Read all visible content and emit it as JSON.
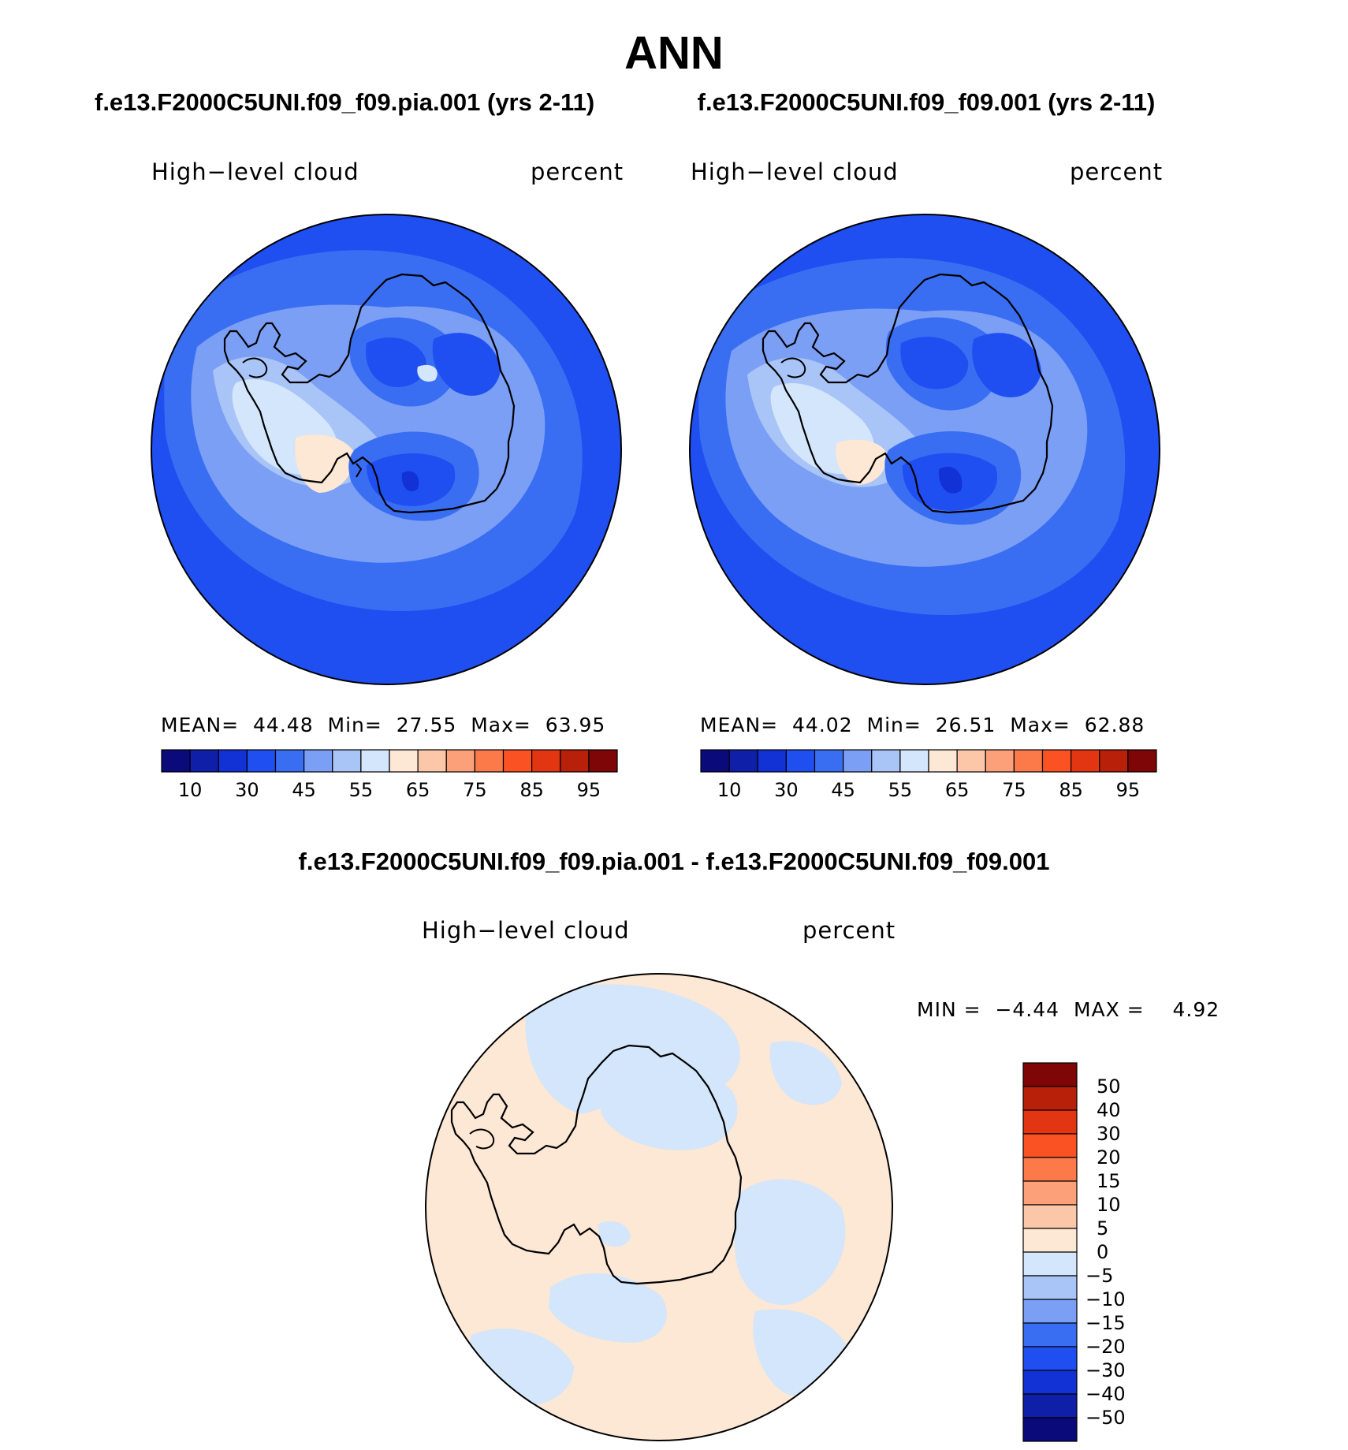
{
  "page_title": "ANN",
  "panels": [
    {
      "case_title": "f.e13.F2000C5UNI.f09_f09.pia.001 (yrs 2-11)",
      "variable": "High−level cloud",
      "units": "percent",
      "stats": {
        "mean_label": "MEAN=",
        "mean": "44.48",
        "min_label": "Min=",
        "min": "27.55",
        "max_label": "Max=",
        "max": "63.95"
      }
    },
    {
      "case_title": "f.e13.F2000C5UNI.f09_f09.001 (yrs 2-11)",
      "variable": "High−level cloud",
      "units": "percent",
      "stats": {
        "mean_label": "MEAN=",
        "mean": "44.02",
        "min_label": "Min=",
        "min": "26.51",
        "max_label": "Max=",
        "max": "62.88"
      }
    }
  ],
  "field_colorbar": {
    "colors": [
      "#0a0a7a",
      "#0f1fa8",
      "#1232d6",
      "#1f4ff0",
      "#3a6ef2",
      "#7a9ff5",
      "#a9c4f7",
      "#d3e6fb",
      "#fde7d5",
      "#fcc7a8",
      "#fca07a",
      "#fc7a4a",
      "#fb5224",
      "#e23512",
      "#b9200a",
      "#7e0606"
    ],
    "tick_labels": [
      "10",
      "30",
      "45",
      "55",
      "65",
      "75",
      "85",
      "95"
    ]
  },
  "difference": {
    "title": "f.e13.F2000C5UNI.f09_f09.pia.001 - f.e13.F2000C5UNI.f09_f09.001",
    "variable": "High−level cloud",
    "units": "percent",
    "min_label": "MIN =",
    "min": "−4.44",
    "max_label": "MAX =",
    "max": "4.92",
    "colorbar": {
      "colors": [
        "#7e0606",
        "#b9200a",
        "#e23512",
        "#fb5224",
        "#fc7a4a",
        "#fca07a",
        "#fcc7a8",
        "#fde7d5",
        "#d3e6fb",
        "#a9c4f7",
        "#7a9ff5",
        "#3a6ef2",
        "#1f4ff0",
        "#1232d6",
        "#0f1fa8",
        "#0a0a7a"
      ],
      "tick_labels": [
        "50",
        "40",
        "30",
        "20",
        "15",
        "10",
        "5",
        "0",
        "−5",
        "−10",
        "−15",
        "−20",
        "−30",
        "−40",
        "−50"
      ]
    }
  }
}
